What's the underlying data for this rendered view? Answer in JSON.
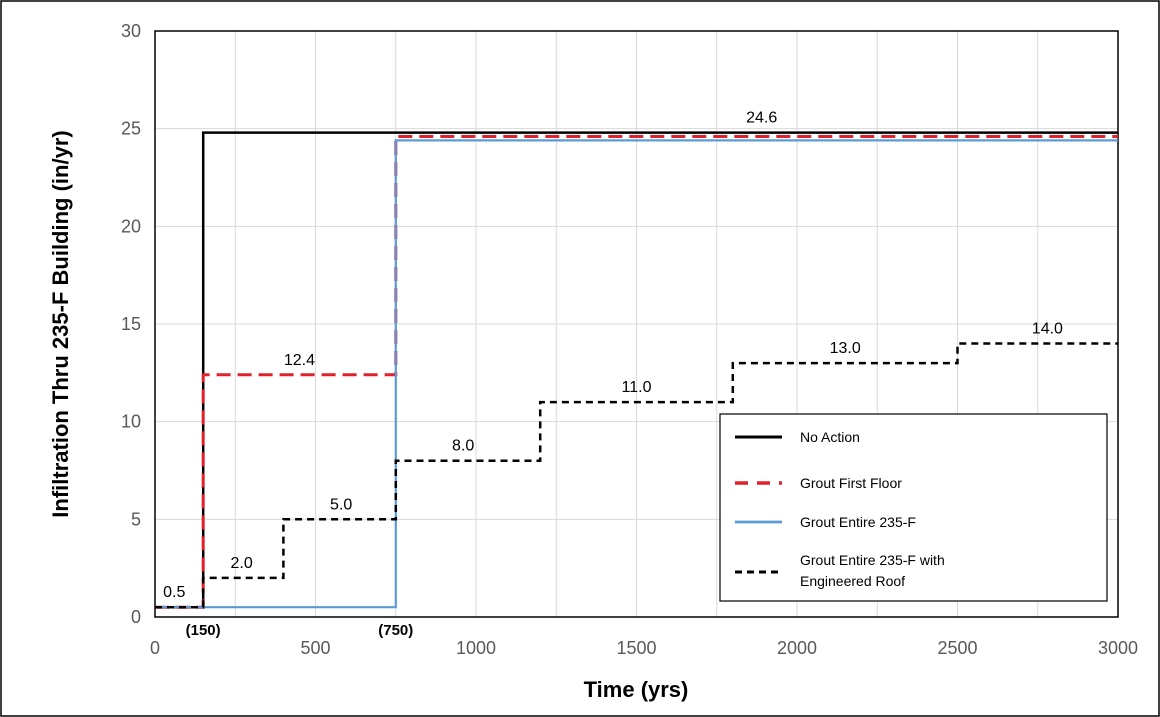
{
  "chart_data": {
    "type": "line",
    "step": true,
    "xlabel": "Time (yrs)",
    "ylabel": "Infiltration Thru 235-F Building (in/yr)",
    "xlim": [
      0,
      3000
    ],
    "ylim": [
      0,
      30
    ],
    "xticks": [
      "0",
      "500",
      "1000",
      "1500",
      "2000",
      "2500",
      "3000"
    ],
    "yticks": [
      "0",
      "5",
      "10",
      "15",
      "20",
      "25",
      "30"
    ],
    "grid": true,
    "legend_position": "bottom-right",
    "series": [
      {
        "name": "No Action",
        "color": "#000000",
        "style": "solid",
        "x": [
          0,
          150,
          150,
          3000
        ],
        "y": [
          0.5,
          0.5,
          24.8,
          24.8
        ]
      },
      {
        "name": "Grout First Floor",
        "color": "#e0202a",
        "style": "dashed",
        "x": [
          0,
          150,
          150,
          750,
          750,
          3000
        ],
        "y": [
          0.5,
          0.5,
          12.4,
          12.4,
          24.6,
          24.6
        ]
      },
      {
        "name": "Grout Entire 235-F",
        "color": "#5b9bd5",
        "style": "solid",
        "x": [
          0,
          750,
          750,
          3000
        ],
        "y": [
          0.5,
          0.5,
          24.4,
          24.4
        ]
      },
      {
        "name": "Grout Entire 235-F with Engineered Roof",
        "name_lines": [
          "Grout Entire 235-F with",
          "Engineered Roof"
        ],
        "color": "#000000",
        "style": "short-dashed",
        "x": [
          0,
          150,
          150,
          400,
          400,
          750,
          750,
          1200,
          1200,
          1800,
          1800,
          2500,
          2500,
          3000
        ],
        "y": [
          0.5,
          0.5,
          2.0,
          2.0,
          5.0,
          5.0,
          8.0,
          8.0,
          11.0,
          11.0,
          13.0,
          13.0,
          14.0,
          14.0
        ]
      }
    ],
    "data_labels": [
      {
        "text": "0.5",
        "x": 60,
        "y": 0.5
      },
      {
        "text": "2.0",
        "x": 270,
        "y": 2.0
      },
      {
        "text": "5.0",
        "x": 580,
        "y": 5.0
      },
      {
        "text": "8.0",
        "x": 960,
        "y": 8.0
      },
      {
        "text": "11.0",
        "x": 1500,
        "y": 11.0
      },
      {
        "text": "13.0",
        "x": 2150,
        "y": 13.0
      },
      {
        "text": "14.0",
        "x": 2780,
        "y": 14.0
      },
      {
        "text": "12.4",
        "x": 450,
        "y": 12.4
      },
      {
        "text": "24.6",
        "x": 1890,
        "y": 24.8
      }
    ],
    "annotations": [
      {
        "text": "(150)",
        "x": 150
      },
      {
        "text": "(750)",
        "x": 750
      }
    ]
  }
}
